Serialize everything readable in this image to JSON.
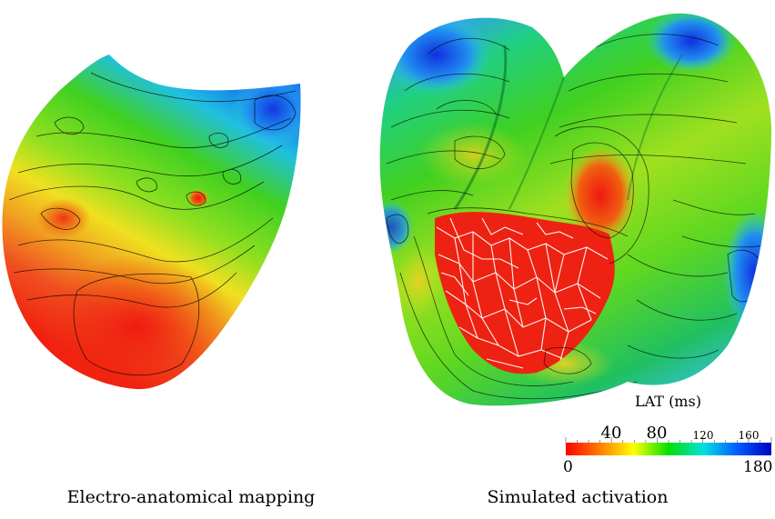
{
  "captions": {
    "left": "Electro-anatomical mapping",
    "right": "Simulated activation"
  },
  "colorbar": {
    "title": "LAT (ms)",
    "min_label": "0",
    "max_label": "180",
    "major_ticks": [
      "40",
      "80"
    ],
    "minor_ticks": [
      "120",
      "160"
    ],
    "range": [
      0,
      180
    ],
    "colors": [
      "#ff0000",
      "#ff8000",
      "#ffff00",
      "#00e000",
      "#00e0e0",
      "#0060ff",
      "#0000c0"
    ]
  },
  "palette": {
    "early": "#f02010",
    "late": "#1040e0",
    "purkinje": "#ffffff",
    "isochrone": "#000000"
  }
}
